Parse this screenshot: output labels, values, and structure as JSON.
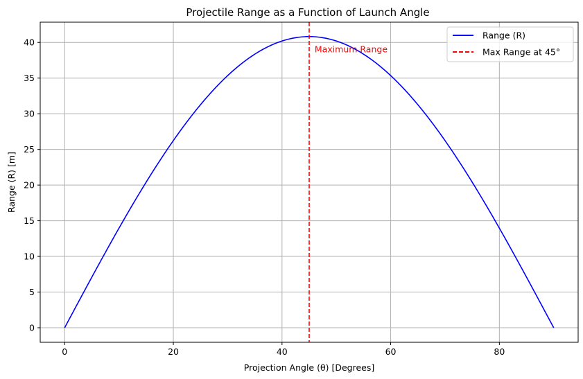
{
  "colors": {
    "range_line": "#0000ff",
    "max_line": "#ff0000",
    "annotation": "#ff0000",
    "grid": "#b0b0b0",
    "axis": "#000000"
  },
  "chart_data": {
    "type": "line",
    "title": "Projectile Range as a Function of Launch Angle",
    "xlabel": "Projection Angle (θ) [Degrees]",
    "ylabel": "Range (R) [m]",
    "xlim": [
      -4.5,
      94.5
    ],
    "ylim": [
      -2.04,
      42.84
    ],
    "xticks": [
      0,
      20,
      40,
      60,
      80
    ],
    "yticks": [
      0,
      5,
      10,
      15,
      20,
      25,
      30,
      35,
      40
    ],
    "grid": true,
    "legend_position": "top-right",
    "series": [
      {
        "name": "Range (R)",
        "style": "solid",
        "x": [
          0,
          5,
          10,
          15,
          20,
          25,
          30,
          35,
          40,
          45,
          50,
          55,
          60,
          65,
          70,
          75,
          80,
          85,
          90
        ],
        "y": [
          0,
          7.09,
          13.96,
          20.41,
          26.24,
          31.27,
          35.35,
          38.35,
          40.19,
          40.82,
          40.19,
          38.35,
          35.35,
          31.27,
          26.24,
          20.41,
          13.96,
          7.09,
          0
        ]
      },
      {
        "name": "Max Range at 45°",
        "style": "dashed",
        "vline_x": 45
      }
    ],
    "annotations": [
      {
        "text": "Maximum Range",
        "x": 46,
        "y": 39
      }
    ]
  }
}
